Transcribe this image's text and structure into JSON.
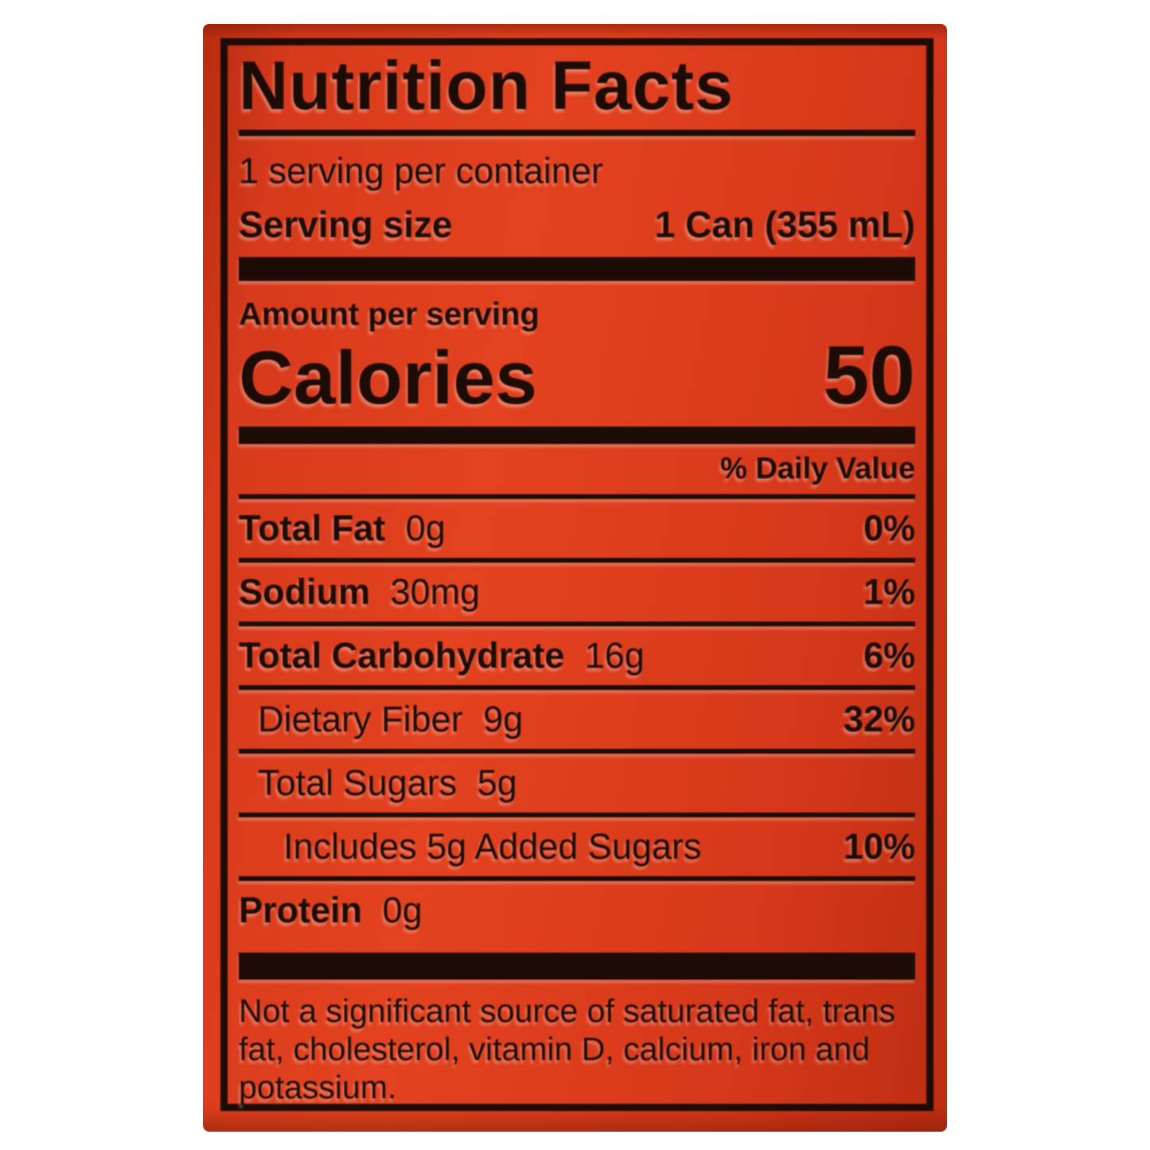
{
  "label": {
    "title": "Nutrition Facts",
    "servings_per_container": "1 serving per container",
    "serving_size_label": "Serving size",
    "serving_size_value": "1 Can (355 mL)",
    "amount_per_serving": "Amount per serving",
    "calories_label": "Calories",
    "calories_value": "50",
    "daily_value_header": "% Daily Value",
    "rows": [
      {
        "name": "Total Fat",
        "amount": "0g",
        "dv": "0%"
      },
      {
        "name": "Sodium",
        "amount": "30mg",
        "dv": "1%"
      },
      {
        "name": "Total Carbohydrate",
        "amount": "16g",
        "dv": "6%"
      },
      {
        "name": "Dietary Fiber",
        "amount": "9g",
        "dv": "32%"
      },
      {
        "name": "Total Sugars",
        "amount": "5g",
        "dv": ""
      },
      {
        "name": "Includes 5g Added Sugars",
        "amount": "",
        "dv": "10%"
      },
      {
        "name": "Protein",
        "amount": "0g",
        "dv": ""
      }
    ],
    "footnote": "Not a significant source of saturated fat, trans fat, cholesterol, vitamin D, calcium, iron and potassium."
  },
  "colors": {
    "can_red": "#d73a1c",
    "label_ink": "#1d0c05",
    "background": "#ffffff"
  }
}
